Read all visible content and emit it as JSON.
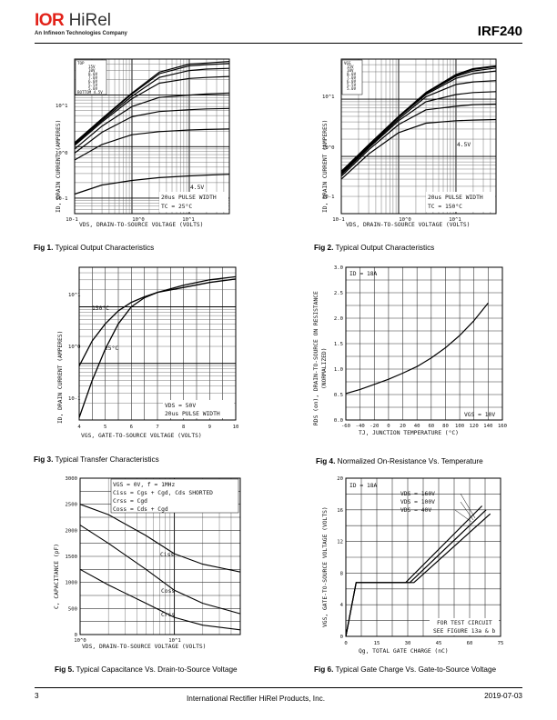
{
  "header": {
    "logo_brand": "IOR",
    "logo_name": "HiRel",
    "logo_subtitle": "An Infineon Technologies Company",
    "part_number": "IRF240"
  },
  "figures": [
    {
      "id": "fig1",
      "caption_num": "Fig 1.",
      "caption_text": " Typical Output Characteristics",
      "ylabel": "ID, DRAIN CURRENT (AMPERES)",
      "xlabel": "VDS, DRAIN-TO-SOURCE VOLTAGE (VOLTS)",
      "legend_vgs": [
        "TOP",
        "15V",
        "10V",
        "8.0V",
        "7.0V",
        "6.0V",
        "5.5V",
        "5.0V",
        "BOTTOM 4.5V"
      ],
      "annotation_1": "20us PULSE WIDTH",
      "annotation_2": "TC = 25°C",
      "curve_label": "4.5V",
      "x_ticks": [
        "10-1",
        "10^0",
        "10^1"
      ],
      "y_ticks": [
        "10^1",
        "10^0",
        "10-1"
      ]
    },
    {
      "id": "fig2",
      "caption_num": "Fig 2.",
      "caption_text": " Typical Output Characteristics",
      "ylabel": "ID, DRAIN CURRENT (AMPERES)",
      "xlabel": "VDS, DRAIN-TO-SOURCE VOLTAGE (VOLTS)",
      "legend_vgs": [
        "VGS",
        "15V",
        "10V",
        "8.0V",
        "7.0V",
        "6.0V",
        "5.5V",
        "5.0V",
        "4.5V"
      ],
      "annotation_1": "20us PULSE WIDTH",
      "annotation_2": "TC = 150°C",
      "curve_label": "4.5V",
      "x_ticks": [
        "10-1",
        "10^0",
        "10^1"
      ],
      "y_ticks": [
        "10^1",
        "10^0",
        "10-1"
      ]
    },
    {
      "id": "fig3",
      "caption_num": "Fig 3.",
      "caption_text": " Typical Transfer Characteristics",
      "ylabel": "ID, DRAIN CURRENT (AMPERES)",
      "xlabel": "VGS, GATE-TO-SOURCE VOLTAGE (VOLTS)",
      "annotation_1": "VDS = 50V",
      "annotation_2": "20us PULSE WIDTH",
      "curve_labels": [
        "150°C",
        "25°C"
      ],
      "x_ticks": [
        "4",
        "5",
        "6",
        "7",
        "8",
        "9",
        "10"
      ],
      "y_ticks": [
        "10^1",
        "10^0",
        "10-1"
      ]
    },
    {
      "id": "fig4",
      "caption_num": "Fig 4.",
      "caption_text": "  Normalized On-Resistance  Vs. Temperature",
      "ylabel_1": "RDS (on), DRAIN-TO-SOURCE ON RESISTANCE",
      "ylabel_2": "(NORMALIZED)",
      "xlabel": "TJ, JUNCTION TEMPERATURE (°C)",
      "annotation_1": "ID = 18A",
      "annotation_2": "VGS = 10V",
      "x_ticks": [
        "-60",
        "-40",
        "-20",
        "0",
        "20",
        "40",
        "60",
        "80",
        "100",
        "120",
        "140",
        "160"
      ],
      "y_ticks": [
        "3.0",
        "2.5",
        "2.0",
        "1.5",
        "1.0",
        "0.5",
        "0.0"
      ]
    },
    {
      "id": "fig5",
      "caption_num": "Fig 5.",
      "caption_text": "  Typical Capacitance Vs. Drain-to-Source Voltage",
      "ylabel": "C, CAPACITANCE (pF)",
      "xlabel": "VDS, DRAIN-TO-SOURCE VOLTAGE (VOLTS)",
      "legend": [
        "VGS = 0V,  f = 1MHz",
        "Ciss = Cgs + Cgd, Cds SHORTED",
        "Crss = Cgd",
        "Coss = Cds + Cgd"
      ],
      "curve_labels": [
        "Ciss",
        "Coss",
        "Crss"
      ],
      "x_ticks": [
        "10^0",
        "10^1"
      ],
      "y_ticks": [
        "3000",
        "2500",
        "2000",
        "1500",
        "1000",
        "500",
        "0"
      ]
    },
    {
      "id": "fig6",
      "caption_num": "Fig 6.",
      "caption_text": "  Typical Gate Charge Vs. Gate-to-Source Voltage",
      "ylabel": "VGS, GATE-TO-SOURCE VOLTAGE (VOLTS)",
      "xlabel": "Qg, TOTAL GATE CHARGE (nC)",
      "annotation_1": "ID = 18A",
      "series_labels": [
        "VDS = 160V",
        "VDS = 100V",
        "VDS = 40V"
      ],
      "note_1": "FOR TEST CIRCUIT",
      "note_2": "SEE FIGURE 13a & b",
      "x_ticks": [
        "0",
        "15",
        "30",
        "45",
        "60",
        "75"
      ],
      "y_ticks": [
        "20",
        "16",
        "12",
        "8",
        "4",
        "0"
      ]
    }
  ],
  "footer": {
    "page_number": "3",
    "company": "International Rectifier HiRel Products, Inc.",
    "date": "2019-07-03"
  },
  "chart_data": [
    {
      "type": "line",
      "title": "Fig 1. Typical Output Characteristics",
      "xlabel": "VDS, DRAIN-TO-SOURCE VOLTAGE (VOLTS)",
      "ylabel": "ID, DRAIN CURRENT (AMPERES)",
      "x_scale": "log",
      "y_scale": "log",
      "xlim": [
        0.1,
        50
      ],
      "ylim": [
        0.05,
        50
      ],
      "series": [
        {
          "name": "15V",
          "x": [
            0.1,
            0.3,
            1,
            3,
            10,
            20,
            50
          ],
          "y": [
            1.2,
            3.5,
            11,
            28,
            40,
            42,
            45
          ]
        },
        {
          "name": "10V",
          "x": [
            0.1,
            0.3,
            1,
            3,
            10,
            20,
            50
          ],
          "y": [
            1.15,
            3.4,
            10.5,
            26,
            37,
            39,
            41
          ]
        },
        {
          "name": "8.0V",
          "x": [
            0.1,
            0.3,
            1,
            3,
            10,
            20,
            50
          ],
          "y": [
            1.1,
            3.2,
            9.5,
            22,
            30,
            32,
            33
          ]
        },
        {
          "name": "7.0V",
          "x": [
            0.1,
            0.3,
            1,
            3,
            10,
            20,
            50
          ],
          "y": [
            1.05,
            3,
            8.5,
            17,
            21,
            22,
            23
          ]
        },
        {
          "name": "6.0V",
          "x": [
            0.1,
            0.3,
            1,
            3,
            10,
            20,
            50
          ],
          "y": [
            0.9,
            2.5,
            6,
            9,
            10,
            10.5,
            11
          ]
        },
        {
          "name": "5.5V",
          "x": [
            0.1,
            0.3,
            1,
            3,
            10,
            20,
            50
          ],
          "y": [
            0.75,
            1.9,
            3.8,
            4.8,
            5.2,
            5.4,
            5.5
          ]
        },
        {
          "name": "5.0V",
          "x": [
            0.1,
            0.3,
            1,
            3,
            10,
            20,
            50
          ],
          "y": [
            0.55,
            1.1,
            1.7,
            1.95,
            2.1,
            2.15,
            2.2
          ]
        },
        {
          "name": "4.5V",
          "x": [
            0.1,
            0.3,
            1,
            3,
            10,
            20,
            50
          ],
          "y": [
            0.12,
            0.18,
            0.22,
            0.25,
            0.27,
            0.28,
            0.29
          ]
        }
      ]
    },
    {
      "type": "line",
      "title": "Fig 2. Typical Output Characteristics",
      "xlabel": "VDS, DRAIN-TO-SOURCE VOLTAGE (VOLTS)",
      "ylabel": "ID, DRAIN CURRENT (AMPERES)",
      "x_scale": "log",
      "y_scale": "log",
      "xlim": [
        0.1,
        50
      ],
      "ylim": [
        0.1,
        50
      ],
      "series": [
        {
          "name": "15V",
          "x": [
            0.1,
            0.3,
            1,
            3,
            10,
            20,
            50
          ],
          "y": [
            0.55,
            1.6,
            5,
            13,
            27,
            34,
            38
          ]
        },
        {
          "name": "10V",
          "x": [
            0.1,
            0.3,
            1,
            3,
            10,
            20,
            50
          ],
          "y": [
            0.54,
            1.6,
            5,
            13,
            26,
            33,
            37
          ]
        },
        {
          "name": "8.0V",
          "x": [
            0.1,
            0.3,
            1,
            3,
            10,
            20,
            50
          ],
          "y": [
            0.53,
            1.55,
            4.9,
            12.5,
            25,
            31,
            35
          ]
        },
        {
          "name": "7.0V",
          "x": [
            0.1,
            0.3,
            1,
            3,
            10,
            20,
            50
          ],
          "y": [
            0.52,
            1.5,
            4.8,
            12,
            23,
            28,
            31
          ]
        },
        {
          "name": "6.0V",
          "x": [
            0.1,
            0.3,
            1,
            3,
            10,
            20,
            50
          ],
          "y": [
            0.5,
            1.45,
            4.5,
            11,
            18,
            20,
            21
          ]
        },
        {
          "name": "5.5V",
          "x": [
            0.1,
            0.3,
            1,
            3,
            10,
            20,
            50
          ],
          "y": [
            0.48,
            1.4,
            4.2,
            9,
            12,
            13,
            13.5
          ]
        },
        {
          "name": "5.0V",
          "x": [
            0.1,
            0.3,
            1,
            3,
            10,
            20,
            50
          ],
          "y": [
            0.45,
            1.3,
            3.6,
            6.5,
            7.5,
            8,
            8.2
          ]
        },
        {
          "name": "4.5V",
          "x": [
            0.1,
            0.3,
            1,
            3,
            10,
            20,
            50
          ],
          "y": [
            0.4,
            1.1,
            2.6,
            3.8,
            4.2,
            4.3,
            4.4
          ]
        }
      ]
    },
    {
      "type": "line",
      "title": "Fig 3. Typical Transfer Characteristics",
      "xlabel": "VGS, GATE-TO-SOURCE VOLTAGE (VOLTS)",
      "ylabel": "ID, DRAIN CURRENT (AMPERES)",
      "y_scale": "log",
      "xlim": [
        4,
        10
      ],
      "ylim": [
        0.1,
        50
      ],
      "series": [
        {
          "name": "150°C",
          "x": [
            4,
            4.5,
            5,
            5.5,
            6,
            6.5,
            7,
            8,
            9,
            10
          ],
          "y": [
            0.9,
            2.5,
            5,
            8.5,
            12,
            15,
            18,
            22,
            27,
            31
          ]
        },
        {
          "name": "25°C",
          "x": [
            4,
            4.5,
            5,
            5.5,
            6,
            6.5,
            7,
            8,
            9,
            10
          ],
          "y": [
            0.11,
            0.5,
            1.8,
            5,
            10,
            14.5,
            18,
            24,
            30,
            34
          ]
        }
      ]
    },
    {
      "type": "line",
      "title": "Fig 4. Normalized On-Resistance Vs. Temperature",
      "xlabel": "TJ, JUNCTION TEMPERATURE (°C)",
      "ylabel": "RDS (on), DRAIN-TO-SOURCE ON RESISTANCE (NORMALIZED)",
      "xlim": [
        -60,
        160
      ],
      "ylim": [
        0,
        3.0
      ],
      "series": [
        {
          "name": "",
          "x": [
            -60,
            -40,
            -20,
            0,
            20,
            40,
            60,
            80,
            100,
            120,
            140
          ],
          "y": [
            0.52,
            0.6,
            0.7,
            0.8,
            0.92,
            1.05,
            1.22,
            1.42,
            1.66,
            1.95,
            2.3
          ]
        }
      ]
    },
    {
      "type": "line",
      "title": "Fig 5. Typical Capacitance Vs. Drain-to-Source Voltage",
      "xlabel": "VDS, DRAIN-TO-SOURCE VOLTAGE (VOLTS)",
      "ylabel": "C, CAPACITANCE (pF)",
      "x_scale": "log",
      "xlim": [
        1,
        50
      ],
      "ylim": [
        0,
        3000
      ],
      "series": [
        {
          "name": "Ciss",
          "x": [
            1,
            2,
            5,
            10,
            20,
            50
          ],
          "y": [
            2500,
            2300,
            1900,
            1550,
            1350,
            1200
          ]
        },
        {
          "name": "Coss",
          "x": [
            1,
            2,
            5,
            10,
            20,
            50
          ],
          "y": [
            2100,
            1750,
            1250,
            850,
            600,
            400
          ]
        },
        {
          "name": "Crss",
          "x": [
            1,
            2,
            5,
            10,
            20,
            50
          ],
          "y": [
            1250,
            950,
            600,
            330,
            180,
            90
          ]
        }
      ]
    },
    {
      "type": "line",
      "title": "Fig 6. Typical Gate Charge Vs. Gate-to-Source Voltage",
      "xlabel": "Qg, TOTAL GATE CHARGE (nC)",
      "ylabel": "VGS, GATE-TO-SOURCE VOLTAGE (VOLTS)",
      "xlim": [
        0,
        75
      ],
      "ylim": [
        0,
        20
      ],
      "series": [
        {
          "name": "VDS = 160V",
          "x": [
            0,
            5,
            33,
            70
          ],
          "y": [
            0,
            6.8,
            6.8,
            15.5
          ]
        },
        {
          "name": "VDS = 100V",
          "x": [
            0,
            5,
            31,
            68
          ],
          "y": [
            0,
            6.8,
            6.8,
            16.0
          ]
        },
        {
          "name": "VDS = 40V",
          "x": [
            0,
            5,
            29,
            66
          ],
          "y": [
            0,
            6.8,
            6.8,
            16.5
          ]
        }
      ]
    }
  ]
}
